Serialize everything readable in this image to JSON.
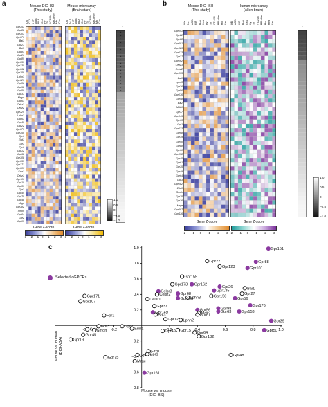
{
  "panel_a": {
    "letter": "a",
    "title_left": "Mouse DIG-ISH\n(This study)",
    "title_right": "Mouse microarray\n(Brain stars)",
    "columns_left": [
      "OB",
      "CTX",
      "HIP",
      "AOB",
      "BLA",
      "CeA",
      "Hy",
      "Th",
      "VTA/SN",
      "MB-other",
      "Mo",
      "Cer"
    ],
    "columns_right": [
      "OB",
      "CTX",
      "HIP",
      "AOB",
      "BLA",
      "CeA",
      "Hy",
      "Th",
      "VTA/SN",
      "MB-other",
      "Mo",
      "Cer"
    ],
    "genes": [
      "Gpr151",
      "Gpr88",
      "Gpr101",
      "Gpr176",
      "Bai1",
      "Gpr27",
      "Bai3",
      "Gpr83",
      "Gpr26",
      "Gpr85",
      "Gpr153",
      "Gpr135",
      "Gpr162",
      "Gpr158",
      "Lphn3",
      "Gpr123",
      "Gpr56",
      "Gpr98",
      "Gpr50",
      "Gpr37",
      "Mrgpr",
      "Gpr63",
      "Celsr3",
      "Celsr2",
      "Gpr125",
      "Lphn2",
      "Gpr61",
      "Gpr49",
      "Gpr22",
      "Gpr173",
      "Gpr150",
      "Gpr6",
      "Eltd1",
      "Gpr1",
      "Fpr1",
      "Gpr12",
      "Gpr68",
      "Gpr108",
      "Gpr155",
      "Gpr171",
      "Gpr107",
      "Emr1",
      "Celsr1",
      "Gpr116",
      "Gpr19",
      "Gpr39",
      "Gpr3",
      "Gpr45",
      "Gpr75",
      "Gpr48",
      "Mrge",
      "Gpr182",
      "Smoh",
      "Gpr64",
      "Gpr2",
      "Gpr15"
    ],
    "cbar_left_label": "Gene Z-score",
    "cbar_right_label": "Gene Z-score",
    "cbar_ticks": [
      "−3",
      "−2",
      "−1",
      "0",
      "1",
      "2",
      "3"
    ],
    "r_label": "r",
    "r_ticks": [
      "1.0",
      "0.5",
      "0",
      "−0.5",
      "−1.0"
    ]
  },
  "panel_b": {
    "letter": "b",
    "title_left": "Mouse DIG-ISH\n(This study)",
    "title_right": "Human microarray\n(Allen brain)",
    "columns_left": [
      "Ola",
      "Pu",
      "AOB",
      "HIP",
      "BLA",
      "CeA",
      "Hy",
      "Th",
      "VTA/SN",
      "MB-other",
      "Mo",
      "Cer"
    ],
    "columns_right": [
      "OB",
      "AOB",
      "HIP",
      "BLA",
      "CeA",
      "Hy",
      "Th",
      "VTA/SN",
      "MB-other",
      "Mo",
      "Med",
      "Cer"
    ],
    "genes": [
      "Gpr151",
      "Gpr22",
      "Gpr88",
      "Gpr101",
      "Gpr123",
      "Gpr173",
      "Gpr27",
      "Gpr162",
      "Celsr3",
      "Celsr2",
      "Gpr135",
      "Bai1",
      "Lphn3",
      "Gpr26",
      "Gpr56",
      "Gpr176",
      "Gpr98",
      "Bai2",
      "Mdtr1",
      "Gpr37",
      "Gpr149",
      "Gpr63",
      "Gpr1",
      "Gpr123",
      "Gpr68",
      "Gpr39",
      "Gpr50",
      "Gpr88",
      "Gpr61",
      "Gpr158",
      "Gpr45",
      "Gpr61",
      "Gpr15",
      "Gpr49",
      "Gpr64",
      "Gpr3",
      "Gpr182",
      "Eltd1",
      "Smoh",
      "Gpr75",
      "Gpr16",
      "Mrge",
      "Gpr107",
      "Gpr116"
    ],
    "cbar_left_label": "Gene Z-score",
    "cbar_right_label": "Gene Z-score",
    "cbar_ticks": [
      "−2",
      "−1",
      "0",
      "1",
      "2",
      "3"
    ],
    "r_label": "r",
    "r_ticks": [
      "1.0",
      "0.5",
      "0",
      "−0.5",
      "−1.0"
    ]
  },
  "panel_c": {
    "letter": "c",
    "legend_label": "Selected oGPCRs",
    "xlabel": "Mouse vs. mouse\n(DIG-BS)",
    "ylabel": "Mouse vs. human\n(DIG-ABA)",
    "accent_color": "#8b3aa0"
  },
  "chart_data": {
    "type": "scatter",
    "xlim": [
      -0.6,
      1.0
    ],
    "ylim": [
      -0.8,
      1.0
    ],
    "xticks": [
      -0.4,
      -0.2,
      0.2,
      0.4,
      0.6,
      0.8,
      1.0
    ],
    "yticks": [
      -0.8,
      -0.6,
      -0.4,
      -0.2,
      0.2,
      0.4,
      0.6,
      0.8,
      1.0
    ],
    "points": [
      {
        "label": "Gpr151",
        "x": 0.91,
        "y": 0.99,
        "selected": true
      },
      {
        "label": "Gpr22",
        "x": 0.47,
        "y": 0.83,
        "selected": false
      },
      {
        "label": "Gpr88",
        "x": 0.82,
        "y": 0.82,
        "selected": true
      },
      {
        "label": "Gpr123",
        "x": 0.56,
        "y": 0.76,
        "selected": false
      },
      {
        "label": "Gpr101",
        "x": 0.76,
        "y": 0.74,
        "selected": true
      },
      {
        "label": "Gpr155",
        "x": 0.29,
        "y": 0.63,
        "selected": false
      },
      {
        "label": "Gpr173",
        "x": 0.22,
        "y": 0.53,
        "selected": false
      },
      {
        "label": "Gpr162",
        "x": 0.36,
        "y": 0.53,
        "selected": true
      },
      {
        "label": "Bai1",
        "x": 0.74,
        "y": 0.48,
        "selected": false
      },
      {
        "label": "Gpr135",
        "x": 0.52,
        "y": 0.45,
        "selected": true
      },
      {
        "label": "Gpr26",
        "x": 0.56,
        "y": 0.5,
        "selected": true
      },
      {
        "label": "Celsr3",
        "x": 0.12,
        "y": 0.44,
        "selected": true
      },
      {
        "label": "Gpr171",
        "x": -0.41,
        "y": 0.38,
        "selected": false
      },
      {
        "label": "Lphn3",
        "x": 0.33,
        "y": 0.36,
        "selected": false
      },
      {
        "label": "Gpr150",
        "x": 0.5,
        "y": 0.38,
        "selected": false
      },
      {
        "label": "Gpr27",
        "x": 0.72,
        "y": 0.41,
        "selected": false
      },
      {
        "label": "Gpr56",
        "x": 0.67,
        "y": 0.35,
        "selected": true
      },
      {
        "label": "Celsr2",
        "x": 0.11,
        "y": 0.4,
        "selected": false
      },
      {
        "label": "Gpr68",
        "x": 0.26,
        "y": 0.41,
        "selected": true
      },
      {
        "label": "Gpr108",
        "x": 0.26,
        "y": 0.35,
        "selected": true
      },
      {
        "label": "Gpr107",
        "x": -0.44,
        "y": 0.31,
        "selected": false
      },
      {
        "label": "Celsr1",
        "x": 0.04,
        "y": 0.34,
        "selected": false
      },
      {
        "label": "Gpr176",
        "x": 0.78,
        "y": 0.26,
        "selected": true
      },
      {
        "label": "Gpr98",
        "x": 0.55,
        "y": 0.22,
        "selected": true
      },
      {
        "label": "Gpr37",
        "x": 0.09,
        "y": 0.25,
        "selected": false
      },
      {
        "label": "Gpr63",
        "x": 0.55,
        "y": 0.18,
        "selected": true
      },
      {
        "label": "Gpr153",
        "x": 0.7,
        "y": 0.18,
        "selected": true
      },
      {
        "label": "Gpr56b",
        "x": 0.4,
        "y": 0.2,
        "selected": true
      },
      {
        "label": "Mdtr1",
        "x": 0.41,
        "y": 0.16,
        "selected": false
      },
      {
        "label": "Gpr61",
        "x": 0.4,
        "y": 0.14,
        "selected": false
      },
      {
        "label": "Gpr149",
        "x": 0.08,
        "y": 0.17,
        "selected": true
      },
      {
        "label": "Bai3",
        "x": 0.1,
        "y": 0.14,
        "selected": false
      },
      {
        "label": "Fpr1",
        "x": -0.27,
        "y": 0.13,
        "selected": false
      },
      {
        "label": "Gpr125",
        "x": 0.17,
        "y": 0.08,
        "selected": false
      },
      {
        "label": "Lphn2",
        "x": 0.28,
        "y": 0.07,
        "selected": false
      },
      {
        "label": "Gpr39",
        "x": 0.93,
        "y": 0.06,
        "selected": true
      },
      {
        "label": "Gpr3",
        "x": -0.31,
        "y": -0.01,
        "selected": false
      },
      {
        "label": "Gpr2",
        "x": -0.14,
        "y": -0.01,
        "selected": false
      },
      {
        "label": "Gpr6",
        "x": -0.39,
        "y": -0.05,
        "selected": false
      },
      {
        "label": "Emr1",
        "x": -0.07,
        "y": -0.04,
        "selected": false
      },
      {
        "label": "Smoh",
        "x": -0.34,
        "y": -0.06,
        "selected": false
      },
      {
        "label": "Gpr45",
        "x": -0.42,
        "y": -0.12,
        "selected": false
      },
      {
        "label": "Gpr49",
        "x": 0.15,
        "y": -0.07,
        "selected": false
      },
      {
        "label": "Gpr15",
        "x": 0.26,
        "y": -0.06,
        "selected": false
      },
      {
        "label": "Gpr64",
        "x": 0.38,
        "y": -0.09,
        "selected": false
      },
      {
        "label": "Gpr182",
        "x": 0.41,
        "y": -0.14,
        "selected": false
      },
      {
        "label": "Gpr50",
        "x": 0.88,
        "y": -0.06,
        "selected": true
      },
      {
        "label": "Gpr19",
        "x": -0.51,
        "y": -0.18,
        "selected": false
      },
      {
        "label": "Gpr75",
        "x": -0.26,
        "y": -0.41,
        "selected": false
      },
      {
        "label": "Gpr116",
        "x": -0.03,
        "y": -0.38,
        "selected": false
      },
      {
        "label": "Eltd1",
        "x": 0.05,
        "y": -0.33,
        "selected": false
      },
      {
        "label": "Gpr1",
        "x": 0.04,
        "y": -0.37,
        "selected": false
      },
      {
        "label": "Gpr48",
        "x": 0.64,
        "y": -0.38,
        "selected": false
      },
      {
        "label": "Mrge",
        "x": -0.05,
        "y": -0.46,
        "selected": false
      },
      {
        "label": "Gpr161",
        "x": 0.02,
        "y": -0.61,
        "selected": true
      }
    ]
  }
}
